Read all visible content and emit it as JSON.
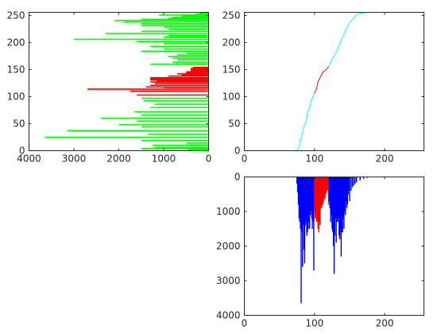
{
  "colors": {
    "green": "#00ff00",
    "red": "#ff0000",
    "cyan": "#00ffff",
    "blue": "#0000ff",
    "axis": "#262626"
  },
  "chart_data": [
    {
      "id": "left-histogram",
      "type": "bar",
      "orientation": "horizontal",
      "x_reversed": true,
      "xlim": [
        0,
        4000
      ],
      "ylim": [
        0,
        256
      ],
      "xticks": [
        4000,
        3000,
        2000,
        1000,
        0
      ],
      "yticks": [
        0,
        50,
        100,
        150,
        200,
        250
      ],
      "highlight_range": [
        100,
        155
      ],
      "bins": [
        [
          0,
          200
        ],
        [
          2,
          450
        ],
        [
          4,
          1500
        ],
        [
          6,
          1200
        ],
        [
          10,
          1250
        ],
        [
          14,
          500
        ],
        [
          19,
          1500
        ],
        [
          25,
          3650
        ],
        [
          30,
          1350
        ],
        [
          37,
          3150
        ],
        [
          44,
          1500
        ],
        [
          48,
          2000
        ],
        [
          55,
          1600
        ],
        [
          60,
          2400
        ],
        [
          66,
          1500
        ],
        [
          72,
          1650
        ],
        [
          80,
          1300
        ],
        [
          86,
          1200
        ],
        [
          92,
          1450
        ],
        [
          97,
          1500
        ],
        [
          103,
          1600
        ],
        [
          110,
          1750
        ],
        [
          114,
          2700
        ],
        [
          117,
          1000
        ],
        [
          118,
          1400
        ],
        [
          121,
          1300
        ],
        [
          124,
          1200
        ],
        [
          127,
          1300
        ],
        [
          129,
          1150
        ],
        [
          131,
          1300
        ],
        [
          133,
          1300
        ],
        [
          135,
          1300
        ],
        [
          138,
          900
        ],
        [
          140,
          600
        ],
        [
          142,
          700
        ],
        [
          144,
          500
        ],
        [
          146,
          500
        ],
        [
          148,
          400
        ],
        [
          150,
          400
        ],
        [
          152,
          400
        ],
        [
          154,
          350
        ],
        [
          160,
          1300
        ],
        [
          164,
          800
        ],
        [
          168,
          700
        ],
        [
          171,
          800
        ],
        [
          174,
          900
        ],
        [
          177,
          700
        ],
        [
          180,
          500
        ],
        [
          184,
          1500
        ],
        [
          188,
          1000
        ],
        [
          193,
          1300
        ],
        [
          198,
          1000
        ],
        [
          202,
          1600
        ],
        [
          206,
          3000
        ],
        [
          210,
          1000
        ],
        [
          213,
          900
        ],
        [
          217,
          2300
        ],
        [
          221,
          1500
        ],
        [
          225,
          900
        ],
        [
          229,
          1000
        ],
        [
          232,
          1500
        ],
        [
          235,
          1500
        ],
        [
          238,
          1900
        ],
        [
          241,
          2100
        ],
        [
          243,
          1500
        ],
        [
          245,
          900
        ],
        [
          247,
          800
        ],
        [
          249,
          600
        ],
        [
          251,
          1100
        ],
        [
          253,
          300
        ],
        [
          255,
          200
        ]
      ]
    },
    {
      "id": "cdf-curve",
      "type": "line",
      "xlim": [
        0,
        256
      ],
      "ylim": [
        0,
        256
      ],
      "xticks": [
        0,
        100,
        200
      ],
      "yticks": [
        0,
        50,
        100,
        150,
        200,
        250
      ],
      "highlight_range": [
        100,
        120
      ],
      "x": [
        0,
        70,
        75,
        78,
        80,
        82,
        85,
        88,
        90,
        93,
        95,
        98,
        100,
        103,
        105,
        108,
        110,
        112,
        115,
        118,
        120,
        125,
        130,
        135,
        140,
        145,
        150,
        155,
        160,
        165,
        170,
        175,
        180,
        200,
        256
      ],
      "y": [
        0,
        0,
        1,
        5,
        20,
        30,
        45,
        55,
        70,
        80,
        92,
        100,
        107,
        115,
        128,
        135,
        141,
        146,
        148,
        152,
        155,
        170,
        180,
        195,
        210,
        225,
        237,
        245,
        251,
        254,
        255,
        256,
        256,
        256,
        256
      ]
    },
    {
      "id": "bottom-histogram",
      "type": "bar",
      "y_reversed": true,
      "xlim": [
        0,
        256
      ],
      "ylim": [
        0,
        4000
      ],
      "xticks": [
        0,
        100,
        200
      ],
      "yticks": [
        0,
        1000,
        2000,
        3000,
        4000
      ],
      "highlight_range": [
        100,
        120
      ],
      "bins": [
        [
          75,
          200
        ],
        [
          76,
          450
        ],
        [
          77,
          800
        ],
        [
          78,
          1200
        ],
        [
          79,
          1300
        ],
        [
          80,
          1500
        ],
        [
          81,
          3650
        ],
        [
          82,
          1600
        ],
        [
          83,
          2600
        ],
        [
          84,
          1400
        ],
        [
          85,
          2100
        ],
        [
          86,
          2500
        ],
        [
          87,
          1400
        ],
        [
          88,
          1300
        ],
        [
          89,
          1700
        ],
        [
          90,
          1600
        ],
        [
          91,
          1500
        ],
        [
          92,
          1300
        ],
        [
          93,
          1500
        ],
        [
          94,
          1100
        ],
        [
          95,
          1000
        ],
        [
          96,
          1200
        ],
        [
          97,
          1500
        ],
        [
          98,
          1300
        ],
        [
          99,
          2700
        ],
        [
          100,
          1000
        ],
        [
          101,
          1200
        ],
        [
          102,
          1100
        ],
        [
          103,
          1300
        ],
        [
          104,
          1250
        ],
        [
          105,
          1500
        ],
        [
          106,
          1600
        ],
        [
          107,
          1300
        ],
        [
          108,
          1400
        ],
        [
          109,
          900
        ],
        [
          110,
          900
        ],
        [
          111,
          800
        ],
        [
          112,
          800
        ],
        [
          113,
          700
        ],
        [
          114,
          600
        ],
        [
          115,
          650
        ],
        [
          116,
          500
        ],
        [
          117,
          450
        ],
        [
          118,
          400
        ],
        [
          119,
          350
        ],
        [
          120,
          800
        ],
        [
          121,
          700
        ],
        [
          122,
          900
        ],
        [
          123,
          1300
        ],
        [
          124,
          1100
        ],
        [
          125,
          1500
        ],
        [
          126,
          1600
        ],
        [
          127,
          2000
        ],
        [
          128,
          2800
        ],
        [
          129,
          1700
        ],
        [
          130,
          1200
        ],
        [
          131,
          1900
        ],
        [
          132,
          1300
        ],
        [
          133,
          1300
        ],
        [
          134,
          1200
        ],
        [
          135,
          1700
        ],
        [
          136,
          1800
        ],
        [
          137,
          1600
        ],
        [
          138,
          2300
        ],
        [
          139,
          1600
        ],
        [
          140,
          1600
        ],
        [
          141,
          1200
        ],
        [
          142,
          1500
        ],
        [
          143,
          1000
        ],
        [
          144,
          1100
        ],
        [
          145,
          700
        ],
        [
          146,
          900
        ],
        [
          147,
          800
        ],
        [
          148,
          500
        ],
        [
          149,
          400
        ],
        [
          150,
          700
        ],
        [
          152,
          400
        ],
        [
          154,
          300
        ],
        [
          156,
          250
        ],
        [
          158,
          200
        ],
        [
          160,
          150
        ],
        [
          165,
          100
        ],
        [
          170,
          60
        ],
        [
          175,
          30
        ]
      ]
    }
  ]
}
